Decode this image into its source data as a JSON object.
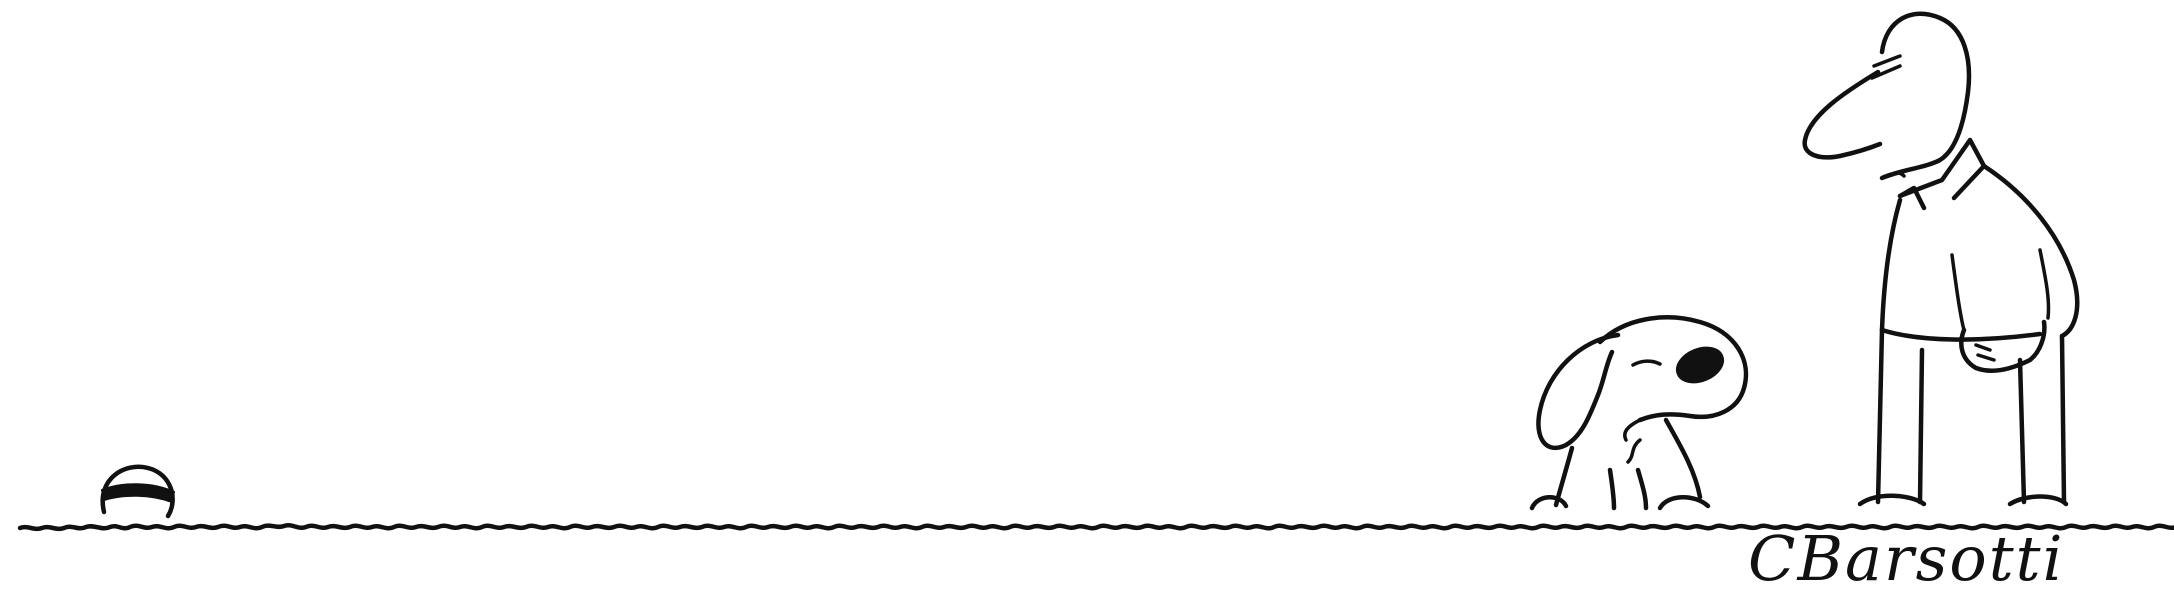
{
  "artwork": {
    "signature": "CBarsotti",
    "background_color": "#ffffff",
    "ink_color": "#111111"
  }
}
